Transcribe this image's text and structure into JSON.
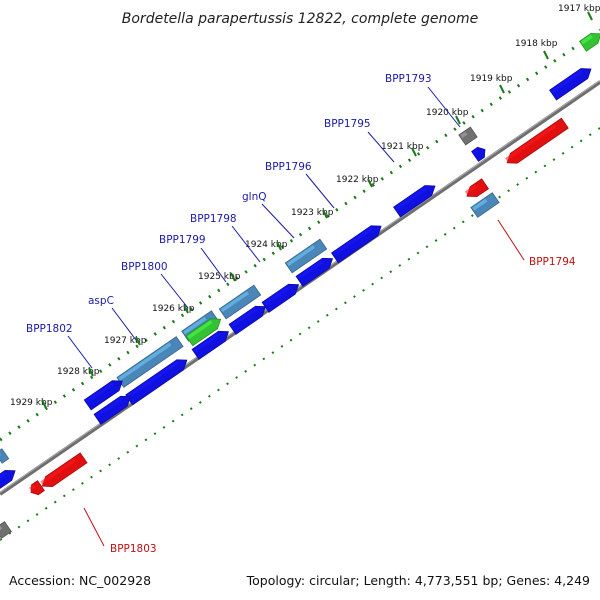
{
  "title": "Bordetella parapertussis 12822, complete genome",
  "footer": {
    "accession": "Accession: NC_002928",
    "summary": "Topology: circular; Length: 4,773,551 bp; Genes: 4,249"
  },
  "colors": {
    "cds": "#1010e0",
    "other": "#4a86b8",
    "rna": "#33c233",
    "reverse": "#e01010",
    "pseudo": "#707070",
    "tick": "#1a7a1a",
    "backbone": "#888888",
    "label_forward": "#1a1aa8",
    "label_reverse": "#c01010"
  },
  "ticks": [
    {
      "label": "1917 kbp"
    },
    {
      "label": "1918 kbp"
    },
    {
      "label": "1919 kbp"
    },
    {
      "label": "1920 kbp"
    },
    {
      "label": "1921 kbp"
    },
    {
      "label": "1922 kbp"
    },
    {
      "label": "1923 kbp"
    },
    {
      "label": "1924 kbp"
    },
    {
      "label": "1925 kbp"
    },
    {
      "label": "1926 kbp"
    },
    {
      "label": "1927 kbp"
    },
    {
      "label": "1928 kbp"
    },
    {
      "label": "1929 kbp"
    }
  ],
  "gene_labels": [
    {
      "text": "BPP1793",
      "strand": "forward"
    },
    {
      "text": "BPP1795",
      "strand": "forward"
    },
    {
      "text": "BPP1796",
      "strand": "forward"
    },
    {
      "text": "glnQ",
      "strand": "forward"
    },
    {
      "text": "BPP1798",
      "strand": "forward"
    },
    {
      "text": "BPP1799",
      "strand": "forward"
    },
    {
      "text": "BPP1800",
      "strand": "forward"
    },
    {
      "text": "aspC",
      "strand": "forward"
    },
    {
      "text": "BPP1802",
      "strand": "forward"
    },
    {
      "text": "BPP1794",
      "strand": "reverse"
    },
    {
      "text": "BPP1803",
      "strand": "reverse"
    }
  ]
}
